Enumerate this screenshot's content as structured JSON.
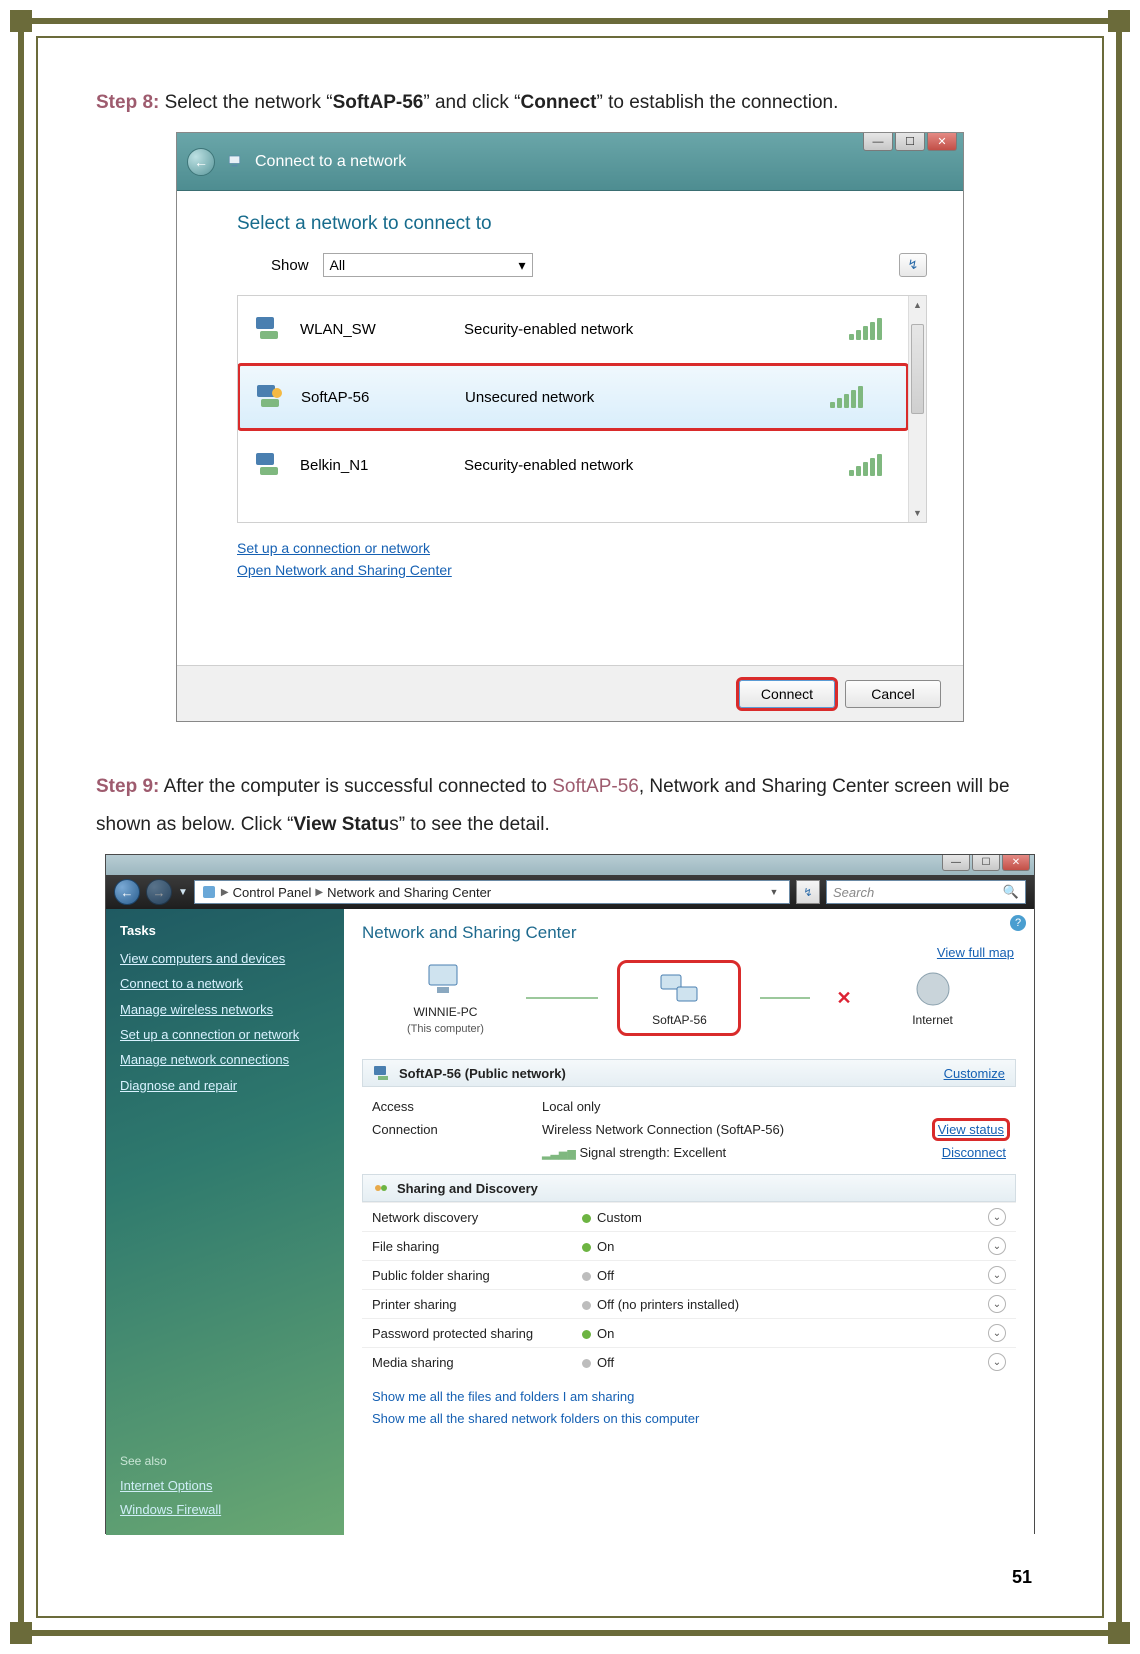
{
  "page_number": "51",
  "step8": {
    "label": "Step 8:",
    "text_before": " Select the network “",
    "net": "SoftAP-56",
    "text_mid": "” and click “",
    "btn": "Connect",
    "text_after": "” to establish the connection."
  },
  "step9": {
    "label": "Step 9:",
    "t1": " After the computer is successful connected to ",
    "net": "SoftAP-56",
    "t2": ", Network and Sharing Center screen will be shown as below. Click “",
    "bold": "View Statu",
    "t3": "s” to see the detail."
  },
  "win1": {
    "title": "Connect to a network",
    "heading": "Select a network to connect to",
    "show_label": "Show",
    "show_value": "All",
    "networks": [
      {
        "name": "WLAN_SW",
        "security": "Security-enabled network",
        "bars": 4
      },
      {
        "name": "SoftAP-56",
        "security": "Unsecured network",
        "bars": 4
      },
      {
        "name": "Belkin_N1",
        "security": "Security-enabled network",
        "bars": 4
      }
    ],
    "link_setup": "Set up a connection or network",
    "link_center": "Open Network and Sharing Center",
    "btn_connect": "Connect",
    "btn_cancel": "Cancel"
  },
  "win2": {
    "breadcrumb": [
      "Control Panel",
      "Network and Sharing Center"
    ],
    "search_placeholder": "Search",
    "tasks_header": "Tasks",
    "tasks": [
      "View computers and devices",
      "Connect to a network",
      "Manage wireless networks",
      "Set up a connection or network",
      "Manage network connections",
      "Diagnose and repair"
    ],
    "see_also_header": "See also",
    "see_also": [
      "Internet Options",
      "Windows Firewall"
    ],
    "content_heading": "Network and Sharing Center",
    "view_full_map": "View full map",
    "map": {
      "pc_name": "WINNIE-PC",
      "pc_sub": "(This computer)",
      "net_name": "SoftAP-56",
      "internet": "Internet"
    },
    "net_section": {
      "title_net": "SoftAP-56",
      "title_type": " (Public network)",
      "customize": "Customize",
      "access_k": "Access",
      "access_v": "Local only",
      "conn_k": "Connection",
      "conn_v": "Wireless Network Connection (SoftAP-56)",
      "signal": "Signal strength:  Excellent",
      "view_status": "View status",
      "disconnect": "Disconnect"
    },
    "sharing_header": "Sharing and Discovery",
    "sharing": [
      {
        "k": "Network discovery",
        "v": "Custom",
        "dot": "green"
      },
      {
        "k": "File sharing",
        "v": "On",
        "dot": "green"
      },
      {
        "k": "Public folder sharing",
        "v": "Off",
        "dot": "grey"
      },
      {
        "k": "Printer sharing",
        "v": "Off (no printers installed)",
        "dot": "grey"
      },
      {
        "k": "Password protected sharing",
        "v": "On",
        "dot": "green"
      },
      {
        "k": "Media sharing",
        "v": "Off",
        "dot": "grey"
      }
    ],
    "bottom_link1": "Show me all the files and folders I am sharing",
    "bottom_link2": "Show me all the shared network folders on this computer"
  }
}
